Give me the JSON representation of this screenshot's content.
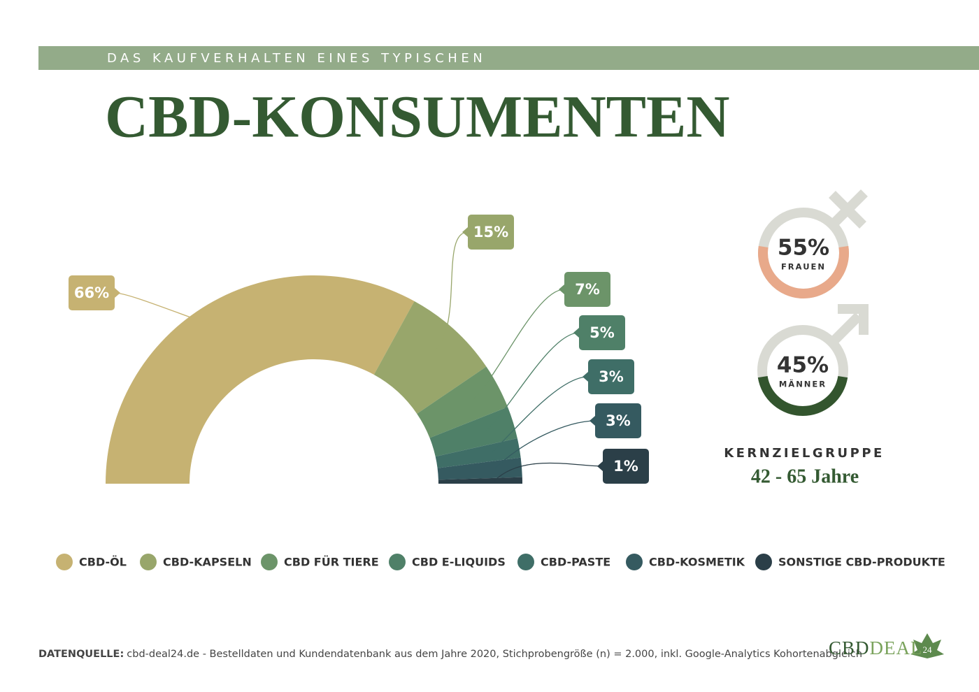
{
  "header": {
    "kicker": "DAS KAUFVERHALTEN EINES TYPISCHEN",
    "title": "CBD-KONSUMENTEN"
  },
  "chart_data": [
    {
      "type": "semi-donut",
      "categories": [
        "CBD-ÖL",
        "CBD-KAPSELN",
        "CBD FÜR TIERE",
        "CBD E-LIQUIDS",
        "CBD-PASTE",
        "CBD-KOSMETIK",
        "SONSTIGE CBD-PRODUKTE"
      ],
      "values": [
        66,
        15,
        7,
        5,
        3,
        3,
        1
      ],
      "value_labels": [
        "66%",
        "15%",
        "7%",
        "5%",
        "3%",
        "3%",
        "1%"
      ],
      "colors": [
        "#c6b272",
        "#98a66b",
        "#6c9469",
        "#4f8068",
        "#3f6e67",
        "#355a60",
        "#2b3f48"
      ]
    },
    {
      "type": "gender-rings",
      "categories": [
        "FRAUEN",
        "MÄNNER"
      ],
      "values": [
        55,
        45
      ],
      "value_labels": [
        "55%",
        "45%"
      ],
      "colors": [
        "#e8a98a",
        "#33552e"
      ]
    }
  ],
  "target": {
    "label": "KERNZIELGRUPPE",
    "value": "42 - 65 Jahre"
  },
  "footer": {
    "source_label": "DATENQUELLE:",
    "source": "cbd-deal24.de - Bestelldaten und Kundendatenbank aus dem Jahre 2020, Stichprobengröße (n) = 2.000, inkl. Google-Analytics Kohortenabgleich"
  },
  "logo": {
    "part1": "CBD",
    "part2": "DEAL",
    "badge": "24"
  }
}
